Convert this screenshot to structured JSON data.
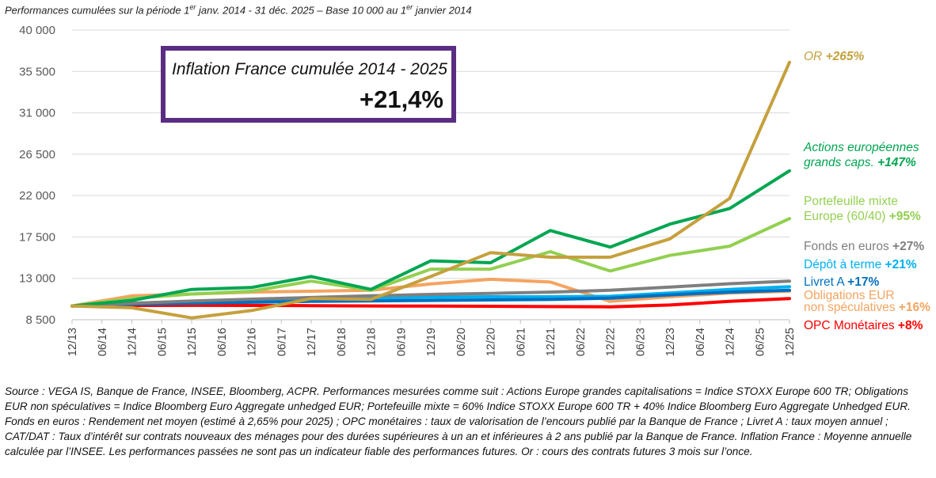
{
  "header": {
    "part1": "Performances cumulées sur la période 1",
    "sup1": "er",
    "part2": " janv. 2014 - 31 déc. 2025 – Base 10 000 au 1",
    "sup2": "er",
    "part3": " janvier 2014"
  },
  "inflation_box": {
    "title": "Inflation France cumulée 2014 - 2025",
    "value": "+21,4%",
    "border_color": "#5a2d82"
  },
  "labels": [
    {
      "id": "or",
      "lines": [
        "OR"
      ],
      "value": "+265%",
      "color": "#c5a03d"
    },
    {
      "id": "actions",
      "lines": [
        "Actions européennes",
        "grands caps."
      ],
      "value": "+147%",
      "color": "#00a651"
    },
    {
      "id": "mixte",
      "lines": [
        "Portefeuille mixte",
        "Europe (60/40)"
      ],
      "value": "+95%",
      "color": "#92d050"
    },
    {
      "id": "fonds",
      "lines": [
        "Fonds en euros"
      ],
      "value": "+27%",
      "color": "#7f7f7f"
    },
    {
      "id": "depot",
      "lines": [
        "Dépôt à terme"
      ],
      "value": "+21%",
      "color": "#00b0f0"
    },
    {
      "id": "livret",
      "lines": [
        "Livret A"
      ],
      "value": "+17%",
      "color": "#0070c0"
    },
    {
      "id": "oblig",
      "lines": [
        "Obligations EUR",
        "non spéculatives"
      ],
      "value": "+16%",
      "color": "#f4a460"
    },
    {
      "id": "opc",
      "lines": [
        "OPC Monétaires"
      ],
      "value": "+8%",
      "color": "#ff0000"
    }
  ],
  "chart_data": {
    "type": "line",
    "x": [
      "12/13",
      "06/14",
      "12/14",
      "06/15",
      "12/15",
      "06/16",
      "12/16",
      "06/17",
      "12/17",
      "06/18",
      "12/18",
      "06/19",
      "12/19",
      "06/20",
      "12/20",
      "06/21",
      "12/21",
      "06/22",
      "12/22",
      "06/23",
      "12/23",
      "06/24",
      "12/24",
      "06/25",
      "12/25"
    ],
    "y_ticks": [
      "8 500",
      "13 000",
      "17 500",
      "22 000",
      "26 500",
      "31 000",
      "35 500",
      "40 000"
    ],
    "ylim": [
      8500,
      40000
    ],
    "grid": "horizontal",
    "series": [
      {
        "id": "oblig",
        "name": "Obligations EUR non spéculatives",
        "color": "#f4a460",
        "width": 4,
        "x": [
          "12/13",
          "12/14",
          "12/15",
          "12/16",
          "12/17",
          "12/18",
          "12/19",
          "12/20",
          "12/21",
          "12/22",
          "12/23",
          "12/24",
          "12/25"
        ],
        "values": [
          10000,
          11100,
          11300,
          11500,
          11600,
          11700,
          12400,
          12900,
          12600,
          10500,
          11000,
          11400,
          11600
        ]
      },
      {
        "id": "opc",
        "name": "OPC Monétaires",
        "color": "#ff0000",
        "width": 4,
        "x": [
          "12/13",
          "12/14",
          "12/15",
          "12/16",
          "12/17",
          "12/18",
          "12/19",
          "12/20",
          "12/21",
          "12/22",
          "12/23",
          "12/24",
          "12/25"
        ],
        "values": [
          10000,
          10050,
          10060,
          10050,
          10030,
          10000,
          9980,
          9960,
          9930,
          9900,
          10100,
          10500,
          10800
        ]
      },
      {
        "id": "depot",
        "name": "Dépôt à terme",
        "color": "#00b0f0",
        "width": 4,
        "x": [
          "12/13",
          "12/14",
          "12/15",
          "12/16",
          "12/17",
          "12/18",
          "12/19",
          "12/20",
          "12/21",
          "12/22",
          "12/23",
          "12/24",
          "12/25"
        ],
        "values": [
          10000,
          10300,
          10500,
          10650,
          10750,
          10850,
          10950,
          11000,
          11000,
          11050,
          11400,
          11800,
          12100
        ]
      },
      {
        "id": "livret",
        "name": "Livret A",
        "color": "#0070c0",
        "width": 4,
        "x": [
          "12/13",
          "12/14",
          "12/15",
          "12/16",
          "12/17",
          "12/18",
          "12/19",
          "12/20",
          "12/21",
          "12/22",
          "12/23",
          "12/24",
          "12/25"
        ],
        "values": [
          10000,
          10200,
          10300,
          10400,
          10500,
          10550,
          10600,
          10650,
          10700,
          10850,
          11200,
          11500,
          11700
        ]
      },
      {
        "id": "fonds",
        "name": "Fonds en euros",
        "color": "#7f7f7f",
        "width": 4,
        "x": [
          "12/13",
          "12/14",
          "12/15",
          "12/16",
          "12/17",
          "12/18",
          "12/19",
          "12/20",
          "12/21",
          "12/22",
          "12/23",
          "12/24",
          "12/25"
        ],
        "values": [
          10000,
          10280,
          10530,
          10740,
          10920,
          11100,
          11250,
          11370,
          11500,
          11700,
          12050,
          12420,
          12700
        ]
      },
      {
        "id": "mixte",
        "name": "Portefeuille mixte Europe (60/40)",
        "color": "#92d050",
        "width": 4,
        "x": [
          "12/13",
          "12/14",
          "12/15",
          "12/16",
          "12/17",
          "12/18",
          "12/19",
          "06/20",
          "12/20",
          "12/21",
          "12/22",
          "12/23",
          "06/24",
          "12/24",
          "12/25"
        ],
        "values": [
          10000,
          10800,
          11300,
          11600,
          12700,
          11700,
          14000,
          14000,
          14000,
          15900,
          13800,
          15500,
          16000,
          16500,
          19500
        ]
      },
      {
        "id": "actions",
        "name": "Actions européennes grands caps.",
        "color": "#00a651",
        "width": 4,
        "x": [
          "12/13",
          "12/14",
          "12/15",
          "12/16",
          "12/17",
          "12/18",
          "12/19",
          "12/20",
          "12/21",
          "12/22",
          "12/23",
          "12/24",
          "12/25"
        ],
        "values": [
          10000,
          10600,
          11800,
          12000,
          13200,
          11800,
          14900,
          14700,
          18200,
          16400,
          18900,
          20600,
          24700
        ]
      },
      {
        "id": "or",
        "name": "OR",
        "color": "#c5a03d",
        "width": 4,
        "x": [
          "12/13",
          "12/14",
          "12/15",
          "12/16",
          "12/17",
          "12/18",
          "12/19",
          "12/20",
          "12/21",
          "12/22",
          "12/23",
          "12/24",
          "12/25"
        ],
        "values": [
          10000,
          9800,
          8700,
          9500,
          10800,
          10700,
          13200,
          15800,
          15300,
          15300,
          17300,
          21700,
          36500
        ]
      }
    ]
  },
  "footnote": {
    "text": "Source : VEGA IS, Banque de France, INSEE, Bloomberg, ACPR. Performances mesurées comme suit : Actions Europe grandes capitalisations = Indice STOXX Europe 600 TR; Obligations EUR non spéculatives = Indice Bloomberg Euro Aggregate unhedged EUR; Portefeuille mixte = 60% Indice STOXX Europe 600 TR + 40% Indice Bloomberg Euro Aggregate Unhedged EUR. Fonds en euros : Rendement net moyen (estimé à 2,65% pour 2025) ; OPC monétaires : taux de valorisation de l’encours publié par la Banque de France ; Livret A : taux moyen annuel ; CAT/DAT : Taux d’intérêt sur contrats nouveaux des ménages pour des durées supérieures à un an et inférieures à 2 ans publié par la Banque de France. Inflation France : Moyenne annuelle calculée par l’INSEE. Les performances passées ne sont pas un indicateur fiable des performances futures. Or : cours des contrats futures 3 mois sur l’once."
  }
}
